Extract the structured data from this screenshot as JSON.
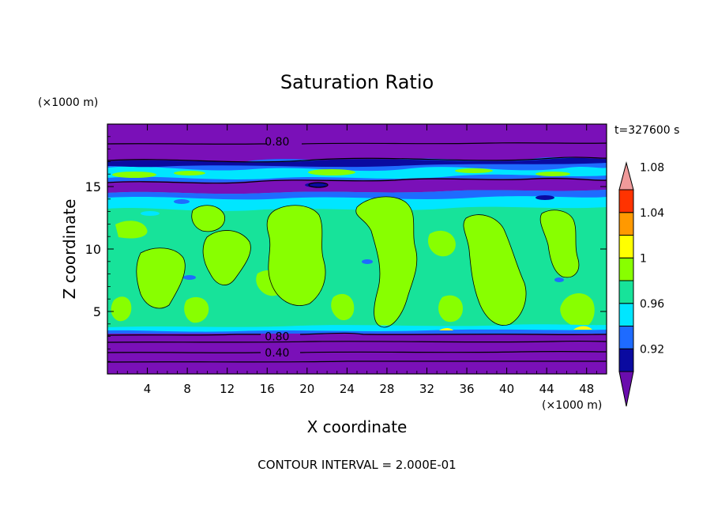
{
  "chart_data": {
    "type": "heatmap",
    "title": "Saturation Ratio",
    "xlabel": "X coordinate",
    "ylabel": "Z coordinate",
    "x_unit": "(×1000 m)",
    "y_unit": "(×1000 m)",
    "xlim": [
      0,
      50
    ],
    "ylim": [
      0,
      20
    ],
    "x_ticks": [
      4,
      8,
      12,
      16,
      20,
      24,
      28,
      32,
      36,
      40,
      44,
      48
    ],
    "y_ticks": [
      5,
      10,
      15
    ],
    "time_label": "t=327600 s",
    "contour_interval_text": "CONTOUR INTERVAL = 2.000E-01",
    "contour_labels": [
      {
        "text": "0.80",
        "x": 17.0,
        "z": 18.6
      },
      {
        "text": "0.80",
        "x": 17.0,
        "z": 3.0
      },
      {
        "text": "0.40",
        "x": 17.0,
        "z": 1.7
      }
    ],
    "colorbar": {
      "levels": [
        0.92,
        0.96,
        1,
        1.04,
        1.08
      ],
      "labels": [
        "0.92",
        "0.96",
        "1",
        "1.04",
        "1.08"
      ],
      "colors": [
        "#6a0dad",
        "#0a0aa0",
        "#1e6bff",
        "#00e6ff",
        "#17e39a",
        "#88ff00",
        "#ffff00",
        "#ff9900",
        "#ff3300",
        "#f09a9a"
      ]
    },
    "colors": {
      "purple": "#7a10b8",
      "dark_blue": "#0a0aa0",
      "blue": "#1e6bff",
      "cyan": "#00e6ff",
      "green": "#17e39a",
      "lime": "#88ff00",
      "yellow": "#ffff00"
    }
  }
}
